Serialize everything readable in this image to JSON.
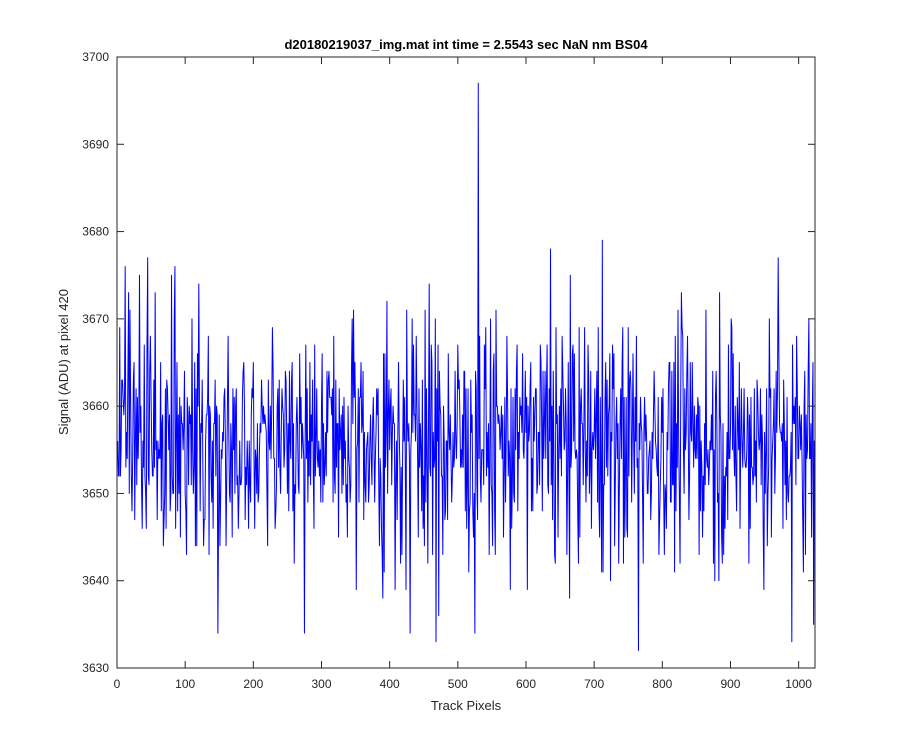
{
  "chart_data": {
    "type": "line",
    "title": "d20180219037_img.mat int time = 2.5543 sec  NaN nm BS04",
    "xlabel": "Track Pixels",
    "ylabel": "Signal (ADU) at pixel 420",
    "xlim": [
      0,
      1024
    ],
    "ylim": [
      3630,
      3700
    ],
    "xticks": [
      0,
      100,
      200,
      300,
      400,
      500,
      600,
      700,
      800,
      900,
      1000
    ],
    "yticks": [
      3630,
      3640,
      3650,
      3660,
      3670,
      3680,
      3690,
      3700
    ],
    "grid": false,
    "legend": "none",
    "line_color": "#0000ff",
    "series": [
      {
        "x_start": 1,
        "x_step": 1,
        "count": 1024,
        "mean": 3656,
        "typical_range": [
          3634,
          3679
        ],
        "notable_points": [
          {
            "x": 530,
            "y": 3697
          },
          {
            "x": 712,
            "y": 3679
          },
          {
            "x": 636,
            "y": 3678
          },
          {
            "x": 970,
            "y": 3677
          },
          {
            "x": 45,
            "y": 3677
          },
          {
            "x": 12,
            "y": 3676
          },
          {
            "x": 765,
            "y": 3632
          },
          {
            "x": 468,
            "y": 3633
          },
          {
            "x": 990,
            "y": 3633
          },
          {
            "x": 275,
            "y": 3634
          },
          {
            "x": 148,
            "y": 3634
          },
          {
            "x": 430,
            "y": 3634
          },
          {
            "x": 525,
            "y": 3634
          },
          {
            "x": 1022,
            "y": 3635
          }
        ]
      }
    ]
  }
}
